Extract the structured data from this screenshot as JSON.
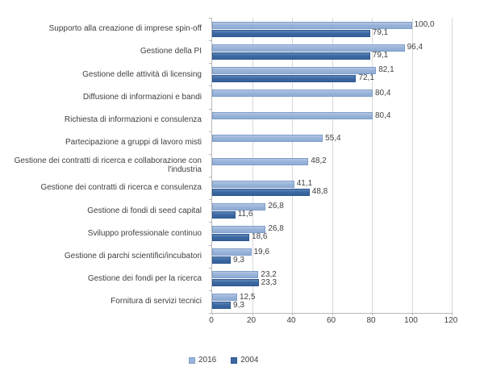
{
  "chart_data": {
    "type": "bar",
    "orientation": "horizontal",
    "title": "",
    "xlabel": "",
    "ylabel": "",
    "categories": [
      "Supporto alla creazione di imprese spin-off",
      "Gestione della PI",
      "Gestione delle attività di licensing",
      "Diffusione di informazioni e bandi",
      "Richiesta di informazioni e consulenza",
      "Partecipazione a gruppi di lavoro misti",
      "Gestione dei contratti di ricerca e collaborazione con l'industria",
      "Gestione dei contratti di ricerca e consulenza",
      "Gestione di fondi di seed capital",
      "Sviluppo professionale continuo",
      "Gestione di parchi scientifici/incubatori",
      "Gestione dei fondi per la ricerca",
      "Fornitura di servizi tecnici"
    ],
    "series": [
      {
        "name": "2016",
        "color": "#99b4da",
        "border_color": "#7e9ec9",
        "values": [
          100.0,
          96.4,
          82.1,
          80.4,
          80.4,
          55.4,
          48.2,
          41.1,
          26.8,
          26.8,
          19.6,
          23.2,
          12.5
        ],
        "labels": [
          "100,0",
          "96,4",
          "82,1",
          "80,4",
          "80,4",
          "55,4",
          "48,2",
          "41,1",
          "26,8",
          "26,8",
          "19,6",
          "23,2",
          "12,5"
        ]
      },
      {
        "name": "2004",
        "color": "#3d69a3",
        "border_color": "#2d568f",
        "values": [
          79.1,
          79.1,
          72.1,
          null,
          null,
          null,
          null,
          48.8,
          11.6,
          18.6,
          9.3,
          23.3,
          9.3
        ],
        "labels": [
          "79,1",
          "79,1",
          "72,1",
          null,
          null,
          null,
          null,
          "48,8",
          "11,6",
          "18,6",
          "9,3",
          "23,3",
          "9,3"
        ]
      }
    ],
    "x_axis": {
      "min": 0,
      "max": 120,
      "ticks": [
        0,
        20,
        40,
        60,
        80,
        100,
        120
      ],
      "tick_labels": [
        "0",
        "20",
        "40",
        "60",
        "80",
        "100",
        "120"
      ],
      "grid": true
    },
    "legend": {
      "position": "bottom",
      "items": [
        "2016",
        "2004"
      ]
    },
    "colors": {
      "text": "#404040",
      "axis_line": "#b7b7b7",
      "gridline": "#d8d8d8",
      "background": "#ffffff"
    }
  }
}
